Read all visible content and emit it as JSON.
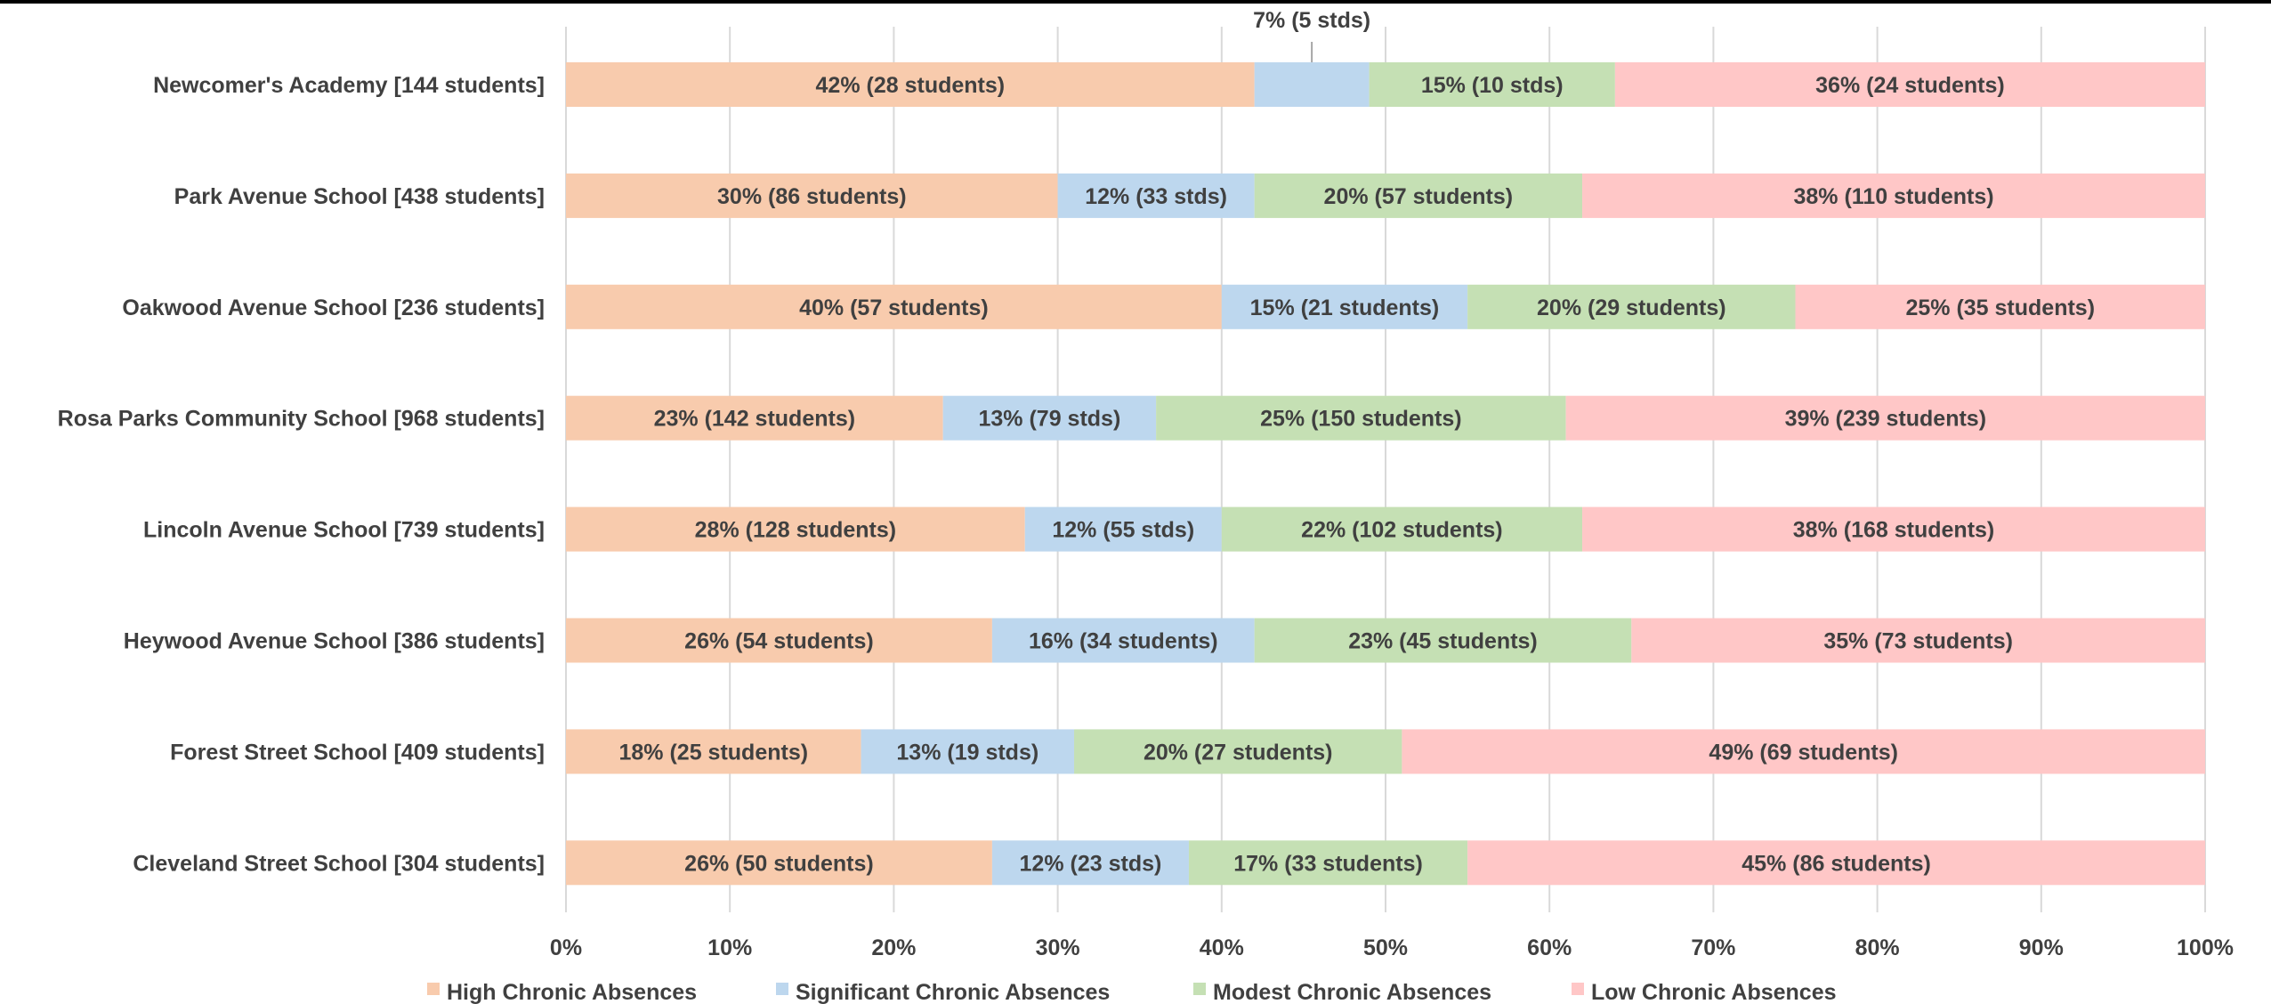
{
  "chart_data": {
    "type": "bar",
    "orientation": "horizontal",
    "stacked": "percent",
    "categories": [
      "Newcomer's Academy [144 students]",
      "Park Avenue School [438 students]",
      "Oakwood Avenue School [236 students]",
      "Rosa Parks Community School [968 students]",
      "Lincoln Avenue School [739 students]",
      "Heywood Avenue School [386 students]",
      "Forest Street School [409 students]",
      "Cleveland Street School [304 students]"
    ],
    "series": [
      {
        "name": "High Chronic Absences",
        "color": "#f8cbad",
        "values": [
          42,
          30,
          40,
          23,
          28,
          26,
          18,
          26
        ],
        "labels": [
          "42% (28 students)",
          "30% (86 students)",
          "40% (57 students)",
          "23% (142 students)",
          "28% (128 students)",
          "26% (54 students)",
          "18% (25 students)",
          "26% (50 students)"
        ]
      },
      {
        "name": "Significant Chronic Absences",
        "color": "#bdd7ee",
        "values": [
          7,
          12,
          15,
          13,
          12,
          16,
          13,
          12
        ],
        "labels": [
          "7% (5 stds)",
          "12% (33 stds)",
          "15% (21 students)",
          "13% (79 stds)",
          "12% (55 stds)",
          "16% (34 students)",
          "13% (19 stds)",
          "12% (23 stds)"
        ]
      },
      {
        "name": "Modest Chronic Absences",
        "color": "#c5e0b4",
        "values": [
          15,
          20,
          20,
          25,
          22,
          23,
          20,
          17
        ],
        "labels": [
          "15% (10 stds)",
          "20% (57 students)",
          "20% (29 students)",
          "25% (150 students)",
          "22% (102 students)",
          "23% (45 students)",
          "20% (27 students)",
          "17% (33 students)"
        ]
      },
      {
        "name": "Low Chronic Absences",
        "color": "#ffc7c7",
        "values": [
          36,
          38,
          25,
          39,
          38,
          35,
          49,
          45
        ],
        "labels": [
          "36% (24 students)",
          "38% (110 students)",
          "25% (35 students)",
          "39% (239 students)",
          "38% (168 students)",
          "35% (73 students)",
          "49% (69 students)",
          "45% (86 students)"
        ]
      }
    ],
    "xaxis_ticks": [
      "0%",
      "10%",
      "20%",
      "30%",
      "40%",
      "50%",
      "60%",
      "70%",
      "80%",
      "90%",
      "100%"
    ],
    "xlim": [
      0,
      100
    ],
    "grid": true,
    "legend_position": "bottom"
  }
}
